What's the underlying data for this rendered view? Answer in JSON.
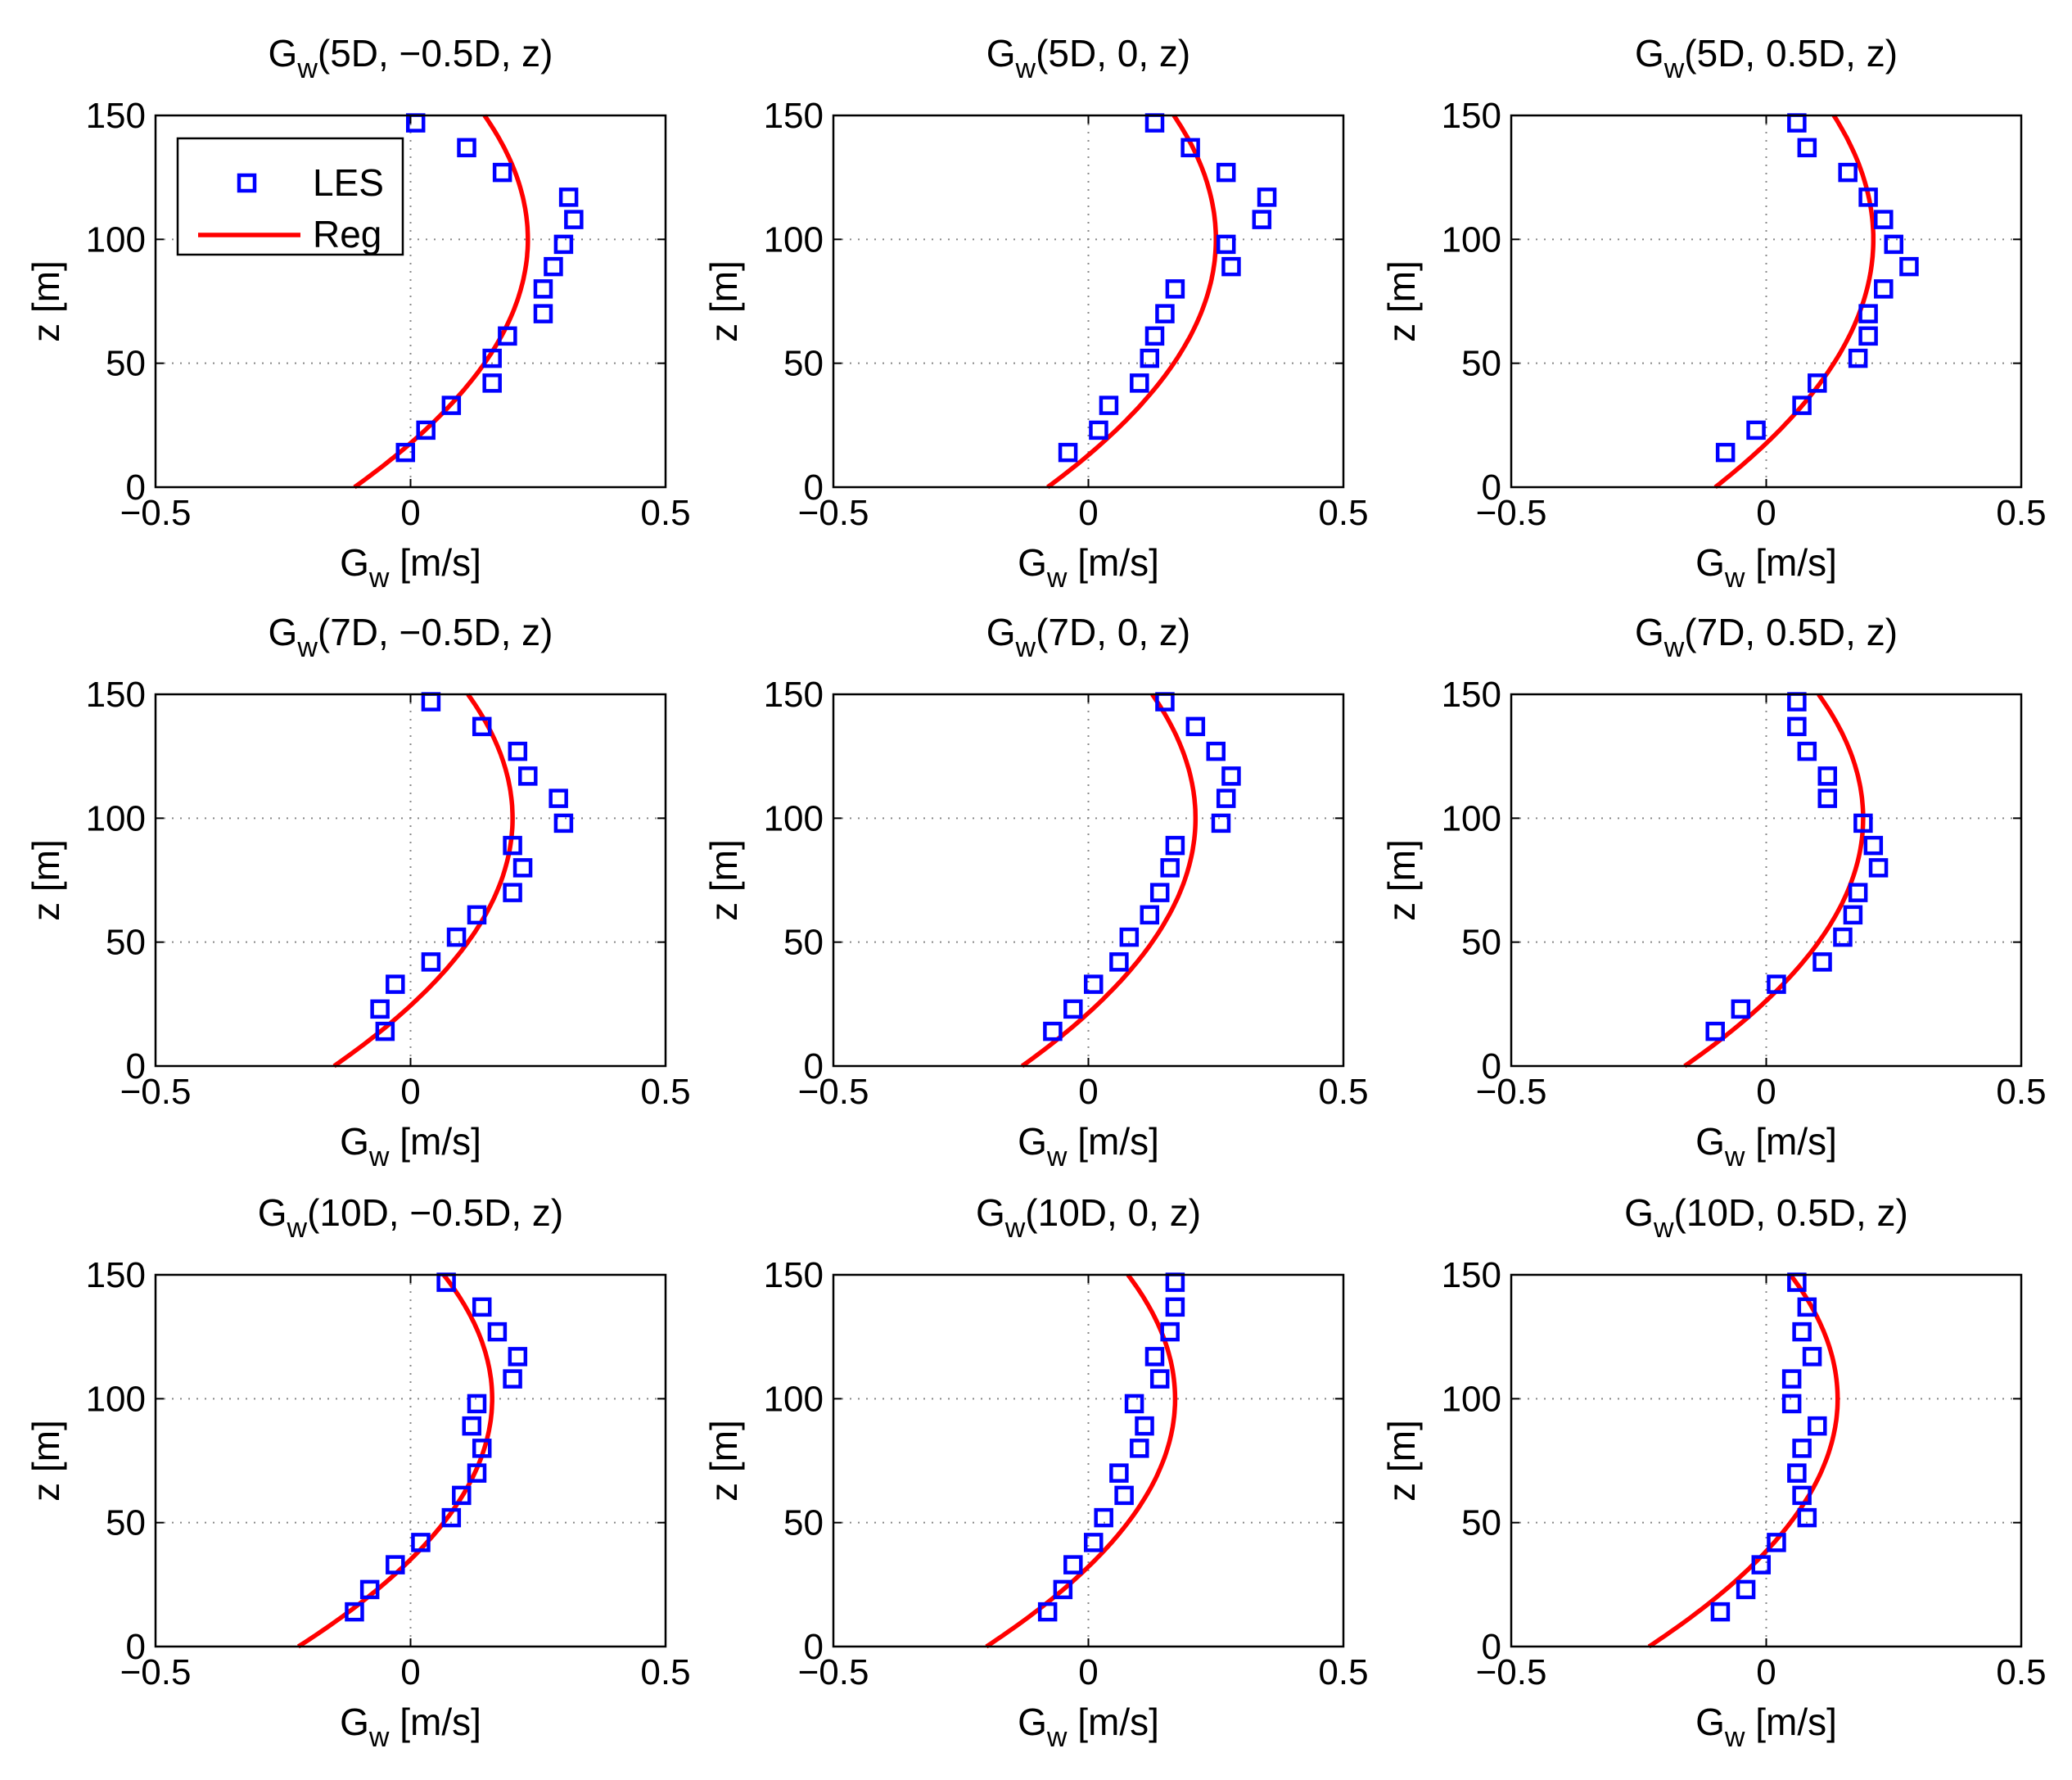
{
  "figure": {
    "legend": {
      "les_label": "LES",
      "reg_label": "Reg"
    },
    "colors": {
      "les": "#0000ff",
      "reg": "#ff0000",
      "grid": "#888888",
      "axes": "#000000"
    }
  },
  "chart_data": [
    {
      "type": "scatter",
      "title": {
        "main": "G",
        "sub": "w",
        "rest": "(5D, −0.5D, z)"
      },
      "xlabel": {
        "main": "G",
        "sub": "w",
        "rest": " [m/s]"
      },
      "ylabel": "z [m]",
      "xlim": [
        -0.5,
        0.5
      ],
      "ylim": [
        0,
        150
      ],
      "xticks": [
        -0.5,
        0,
        0.5
      ],
      "yticks": [
        0,
        50,
        100,
        150
      ],
      "xtick_labels": [
        "−0.5",
        "0",
        "0.5"
      ],
      "ytick_labels": [
        "0",
        "50",
        "100",
        "150"
      ],
      "legend_position": "top-left",
      "series": [
        {
          "name": "LES",
          "marker": "square",
          "x": [
            -0.01,
            0.03,
            0.08,
            0.16,
            0.16,
            0.19,
            0.26,
            0.26,
            0.28,
            0.3,
            0.32,
            0.31,
            0.18,
            0.11,
            0.01
          ],
          "y": [
            14,
            23,
            33,
            42,
            52,
            61,
            70,
            80,
            89,
            98,
            108,
            117,
            127,
            137,
            147
          ]
        },
        {
          "name": "Reg",
          "curve": "parabola",
          "vertex": [
            0.23,
            100
          ],
          "x_at_zero": -0.11
        }
      ]
    },
    {
      "type": "scatter",
      "title": {
        "main": "G",
        "sub": "w",
        "rest": "(5D, 0, z)"
      },
      "xlabel": {
        "main": "G",
        "sub": "w",
        "rest": " [m/s]"
      },
      "ylabel": "z [m]",
      "xlim": [
        -0.5,
        0.5
      ],
      "ylim": [
        0,
        150
      ],
      "xticks": [
        -0.5,
        0,
        0.5
      ],
      "yticks": [
        0,
        50,
        100,
        150
      ],
      "xtick_labels": [
        "−0.5",
        "0",
        "0.5"
      ],
      "ytick_labels": [
        "0",
        "50",
        "100",
        "150"
      ],
      "series": [
        {
          "name": "LES",
          "marker": "square",
          "x": [
            -0.04,
            0.02,
            0.04,
            0.1,
            0.12,
            0.13,
            0.15,
            0.17,
            0.28,
            0.27,
            0.34,
            0.35,
            0.27,
            0.2,
            0.13
          ],
          "y": [
            14,
            23,
            33,
            42,
            52,
            61,
            70,
            80,
            89,
            98,
            108,
            117,
            127,
            137,
            147
          ]
        },
        {
          "name": "Reg",
          "curve": "parabola",
          "vertex": [
            0.25,
            100
          ],
          "x_at_zero": -0.08
        }
      ]
    },
    {
      "type": "scatter",
      "title": {
        "main": "G",
        "sub": "w",
        "rest": "(5D, 0.5D, z)"
      },
      "xlabel": {
        "main": "G",
        "sub": "w",
        "rest": " [m/s]"
      },
      "ylabel": "z [m]",
      "xlim": [
        -0.5,
        0.5
      ],
      "ylim": [
        0,
        150
      ],
      "xticks": [
        -0.5,
        0,
        0.5
      ],
      "yticks": [
        0,
        50,
        100,
        150
      ],
      "xtick_labels": [
        "−0.5",
        "0",
        "0.5"
      ],
      "ytick_labels": [
        "0",
        "50",
        "100",
        "150"
      ],
      "series": [
        {
          "name": "LES",
          "marker": "square",
          "x": [
            -0.08,
            -0.02,
            0.07,
            0.1,
            0.18,
            0.2,
            0.2,
            0.23,
            0.28,
            0.25,
            0.23,
            0.2,
            0.16,
            0.08,
            0.06
          ],
          "y": [
            14,
            23,
            33,
            42,
            52,
            61,
            70,
            80,
            89,
            98,
            108,
            117,
            127,
            137,
            147
          ]
        },
        {
          "name": "Reg",
          "curve": "parabola",
          "vertex": [
            0.21,
            100
          ],
          "x_at_zero": -0.1
        }
      ]
    },
    {
      "type": "scatter",
      "title": {
        "main": "G",
        "sub": "w",
        "rest": "(7D, −0.5D, z)"
      },
      "xlabel": {
        "main": "G",
        "sub": "w",
        "rest": " [m/s]"
      },
      "ylabel": "z [m]",
      "xlim": [
        -0.5,
        0.5
      ],
      "ylim": [
        0,
        150
      ],
      "xticks": [
        -0.5,
        0,
        0.5
      ],
      "yticks": [
        0,
        50,
        100,
        150
      ],
      "xtick_labels": [
        "−0.5",
        "0",
        "0.5"
      ],
      "ytick_labels": [
        "0",
        "50",
        "100",
        "150"
      ],
      "series": [
        {
          "name": "LES",
          "marker": "square",
          "x": [
            -0.05,
            -0.06,
            -0.03,
            0.04,
            0.09,
            0.13,
            0.2,
            0.22,
            0.2,
            0.3,
            0.29,
            0.23,
            0.21,
            0.14,
            0.04
          ],
          "y": [
            14,
            23,
            33,
            42,
            52,
            61,
            70,
            80,
            89,
            98,
            108,
            117,
            127,
            137,
            147
          ]
        },
        {
          "name": "Reg",
          "curve": "parabola",
          "vertex": [
            0.2,
            100
          ],
          "x_at_zero": -0.15
        }
      ]
    },
    {
      "type": "scatter",
      "title": {
        "main": "G",
        "sub": "w",
        "rest": "(7D, 0, z)"
      },
      "xlabel": {
        "main": "G",
        "sub": "w",
        "rest": " [m/s]"
      },
      "ylabel": "z [m]",
      "xlim": [
        -0.5,
        0.5
      ],
      "ylim": [
        0,
        150
      ],
      "xticks": [
        -0.5,
        0,
        0.5
      ],
      "yticks": [
        0,
        50,
        100,
        150
      ],
      "xtick_labels": [
        "−0.5",
        "0",
        "0.5"
      ],
      "ytick_labels": [
        "0",
        "50",
        "100",
        "150"
      ],
      "series": [
        {
          "name": "LES",
          "marker": "square",
          "x": [
            -0.07,
            -0.03,
            0.01,
            0.06,
            0.08,
            0.12,
            0.14,
            0.16,
            0.17,
            0.26,
            0.27,
            0.28,
            0.25,
            0.21,
            0.15
          ],
          "y": [
            14,
            23,
            33,
            42,
            52,
            61,
            70,
            80,
            89,
            98,
            108,
            117,
            127,
            137,
            147
          ]
        },
        {
          "name": "Reg",
          "curve": "parabola",
          "vertex": [
            0.21,
            100
          ],
          "x_at_zero": -0.13
        }
      ]
    },
    {
      "type": "scatter",
      "title": {
        "main": "G",
        "sub": "w",
        "rest": "(7D, 0.5D, z)"
      },
      "xlabel": {
        "main": "G",
        "sub": "w",
        "rest": " [m/s]"
      },
      "ylabel": "z [m]",
      "xlim": [
        -0.5,
        0.5
      ],
      "ylim": [
        0,
        150
      ],
      "xticks": [
        -0.5,
        0,
        0.5
      ],
      "yticks": [
        0,
        50,
        100,
        150
      ],
      "xtick_labels": [
        "−0.5",
        "0",
        "0.5"
      ],
      "ytick_labels": [
        "0",
        "50",
        "100",
        "150"
      ],
      "series": [
        {
          "name": "LES",
          "marker": "square",
          "x": [
            -0.1,
            -0.05,
            0.02,
            0.11,
            0.15,
            0.17,
            0.18,
            0.22,
            0.21,
            0.19,
            0.12,
            0.12,
            0.08,
            0.06,
            0.06
          ],
          "y": [
            14,
            23,
            33,
            42,
            52,
            61,
            70,
            80,
            89,
            98,
            108,
            117,
            127,
            137,
            147
          ]
        },
        {
          "name": "Reg",
          "curve": "parabola",
          "vertex": [
            0.19,
            100
          ],
          "x_at_zero": -0.16
        }
      ]
    },
    {
      "type": "scatter",
      "title": {
        "main": "G",
        "sub": "w",
        "rest": "(10D, −0.5D, z)"
      },
      "xlabel": {
        "main": "G",
        "sub": "w",
        "rest": " [m/s]"
      },
      "ylabel": "z [m]",
      "xlim": [
        -0.5,
        0.5
      ],
      "ylim": [
        0,
        150
      ],
      "xticks": [
        -0.5,
        0,
        0.5
      ],
      "yticks": [
        0,
        50,
        100,
        150
      ],
      "xtick_labels": [
        "−0.5",
        "0",
        "0.5"
      ],
      "ytick_labels": [
        "0",
        "50",
        "100",
        "150"
      ],
      "series": [
        {
          "name": "LES",
          "marker": "square",
          "x": [
            -0.11,
            -0.08,
            -0.03,
            0.02,
            0.08,
            0.1,
            0.13,
            0.14,
            0.12,
            0.13,
            0.2,
            0.21,
            0.17,
            0.14,
            0.07
          ],
          "y": [
            14,
            23,
            33,
            42,
            52,
            61,
            70,
            80,
            89,
            98,
            108,
            117,
            127,
            137,
            147
          ]
        },
        {
          "name": "Reg",
          "curve": "parabola",
          "vertex": [
            0.16,
            100
          ],
          "x_at_zero": -0.22
        }
      ]
    },
    {
      "type": "scatter",
      "title": {
        "main": "G",
        "sub": "w",
        "rest": "(10D, 0, z)"
      },
      "xlabel": {
        "main": "G",
        "sub": "w",
        "rest": " [m/s]"
      },
      "ylabel": "z [m]",
      "xlim": [
        -0.5,
        0.5
      ],
      "ylim": [
        0,
        150
      ],
      "xticks": [
        -0.5,
        0,
        0.5
      ],
      "yticks": [
        0,
        50,
        100,
        150
      ],
      "xtick_labels": [
        "−0.5",
        "0",
        "0.5"
      ],
      "ytick_labels": [
        "0",
        "50",
        "100",
        "150"
      ],
      "series": [
        {
          "name": "LES",
          "marker": "square",
          "x": [
            -0.08,
            -0.05,
            -0.03,
            0.01,
            0.03,
            0.07,
            0.06,
            0.1,
            0.11,
            0.09,
            0.14,
            0.13,
            0.16,
            0.17,
            0.17
          ],
          "y": [
            14,
            23,
            33,
            42,
            52,
            61,
            70,
            80,
            89,
            98,
            108,
            117,
            127,
            137,
            147
          ]
        },
        {
          "name": "Reg",
          "curve": "parabola",
          "vertex": [
            0.17,
            100
          ],
          "x_at_zero": -0.2
        }
      ]
    },
    {
      "type": "scatter",
      "title": {
        "main": "G",
        "sub": "w",
        "rest": "(10D, 0.5D, z)"
      },
      "xlabel": {
        "main": "G",
        "sub": "w",
        "rest": " [m/s]"
      },
      "ylabel": "z [m]",
      "xlim": [
        -0.5,
        0.5
      ],
      "ylim": [
        0,
        150
      ],
      "xticks": [
        -0.5,
        0,
        0.5
      ],
      "yticks": [
        0,
        50,
        100,
        150
      ],
      "xtick_labels": [
        "−0.5",
        "0",
        "0.5"
      ],
      "ytick_labels": [
        "0",
        "50",
        "100",
        "150"
      ],
      "series": [
        {
          "name": "LES",
          "marker": "square",
          "x": [
            -0.09,
            -0.04,
            -0.01,
            0.02,
            0.08,
            0.07,
            0.06,
            0.07,
            0.1,
            0.05,
            0.05,
            0.09,
            0.07,
            0.08,
            0.06
          ],
          "y": [
            14,
            23,
            33,
            42,
            52,
            61,
            70,
            80,
            89,
            98,
            108,
            117,
            127,
            137,
            147
          ]
        },
        {
          "name": "Reg",
          "curve": "parabola",
          "vertex": [
            0.14,
            100
          ],
          "x_at_zero": -0.23
        }
      ]
    }
  ]
}
